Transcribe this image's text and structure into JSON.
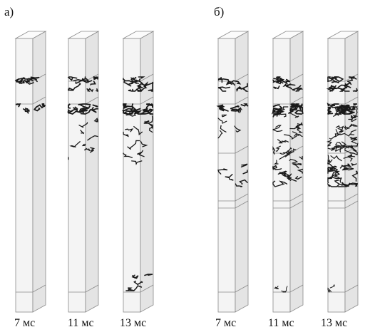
{
  "figure": {
    "panels": [
      {
        "label": "а)",
        "columns": [
          {
            "caption": "7 мс"
          },
          {
            "caption": "11 мс"
          },
          {
            "caption": "13 мс"
          }
        ]
      },
      {
        "label": "б)",
        "columns": [
          {
            "caption": "7 мс"
          },
          {
            "caption": "11 мс"
          },
          {
            "caption": "13 мс"
          }
        ]
      }
    ]
  },
  "colors": {
    "face_front": "#f4f4f4",
    "face_side": "#e4e4e4",
    "face_top": "#fbfbfb",
    "edge": "#8a8a8a",
    "crack": "#1a1a1a",
    "text": "#111111"
  }
}
